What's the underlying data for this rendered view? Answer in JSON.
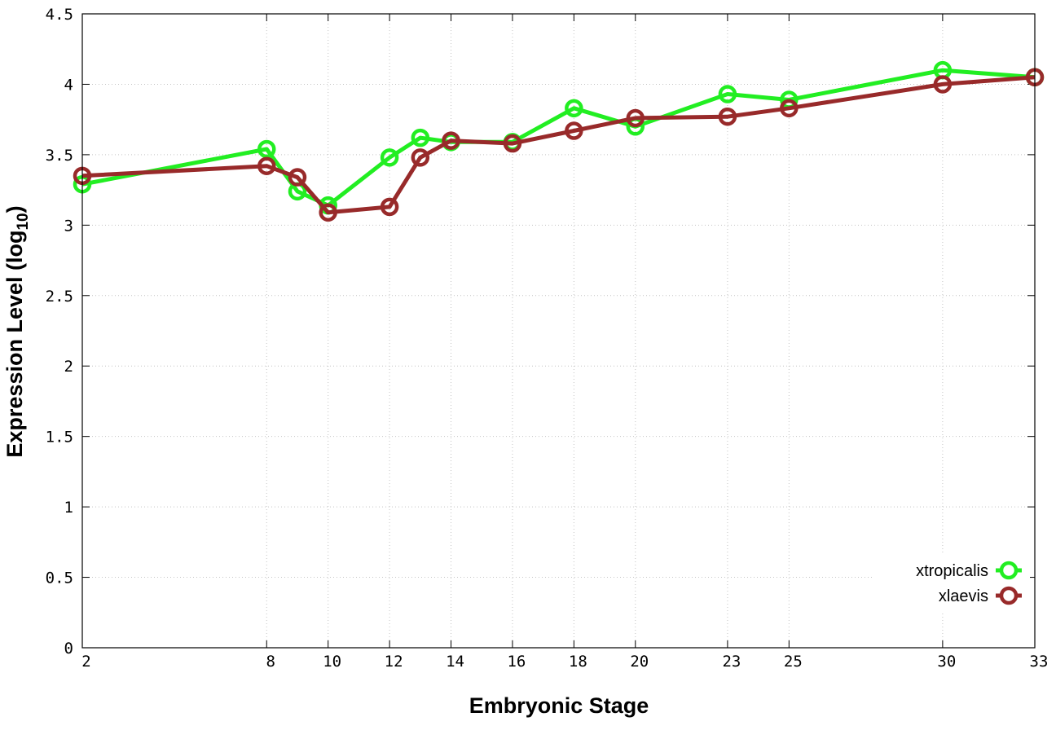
{
  "chart_data": {
    "type": "line",
    "title": "",
    "xlabel": "Embryonic Stage",
    "ylabel_main": "Expression Level (log",
    "ylabel_sub": "10",
    "ylabel_close": ")",
    "xlim": [
      2,
      33
    ],
    "ylim": [
      0,
      4.5
    ],
    "xticks": [
      2,
      8,
      10,
      12,
      14,
      16,
      18,
      20,
      23,
      25,
      30,
      33
    ],
    "yticks": [
      {
        "value": 0,
        "label": "0"
      },
      {
        "value": 0.5,
        "label": "0.5"
      },
      {
        "value": 1,
        "label": "1"
      },
      {
        "value": 1.5,
        "label": "1.5"
      },
      {
        "value": 2,
        "label": "2"
      },
      {
        "value": 2.5,
        "label": "2.5"
      },
      {
        "value": 3,
        "label": "3"
      },
      {
        "value": 3.5,
        "label": "3.5"
      },
      {
        "value": 4,
        "label": "4"
      },
      {
        "value": 4.5,
        "label": "4.5"
      }
    ],
    "grid": true,
    "legend_position": "bottom-right",
    "series": [
      {
        "name": "xtropicalis",
        "color": "#22ee22",
        "points": [
          {
            "x": 2,
            "y": 3.29
          },
          {
            "x": 8,
            "y": 3.54
          },
          {
            "x": 9,
            "y": 3.24
          },
          {
            "x": 10,
            "y": 3.14
          },
          {
            "x": 12,
            "y": 3.48
          },
          {
            "x": 13,
            "y": 3.62
          },
          {
            "x": 14,
            "y": 3.59
          },
          {
            "x": 16,
            "y": 3.59
          },
          {
            "x": 18,
            "y": 3.83
          },
          {
            "x": 20,
            "y": 3.7
          },
          {
            "x": 23,
            "y": 3.93
          },
          {
            "x": 25,
            "y": 3.89
          },
          {
            "x": 30,
            "y": 4.1
          },
          {
            "x": 33,
            "y": 4.05
          }
        ]
      },
      {
        "name": "xlaevis",
        "color": "#982a2a",
        "points": [
          {
            "x": 2,
            "y": 3.35
          },
          {
            "x": 8,
            "y": 3.42
          },
          {
            "x": 9,
            "y": 3.34
          },
          {
            "x": 10,
            "y": 3.09
          },
          {
            "x": 12,
            "y": 3.13
          },
          {
            "x": 13,
            "y": 3.48
          },
          {
            "x": 14,
            "y": 3.6
          },
          {
            "x": 16,
            "y": 3.58
          },
          {
            "x": 18,
            "y": 3.67
          },
          {
            "x": 20,
            "y": 3.76
          },
          {
            "x": 23,
            "y": 3.77
          },
          {
            "x": 25,
            "y": 3.83
          },
          {
            "x": 30,
            "y": 4.0
          },
          {
            "x": 33,
            "y": 4.05
          }
        ]
      }
    ]
  }
}
